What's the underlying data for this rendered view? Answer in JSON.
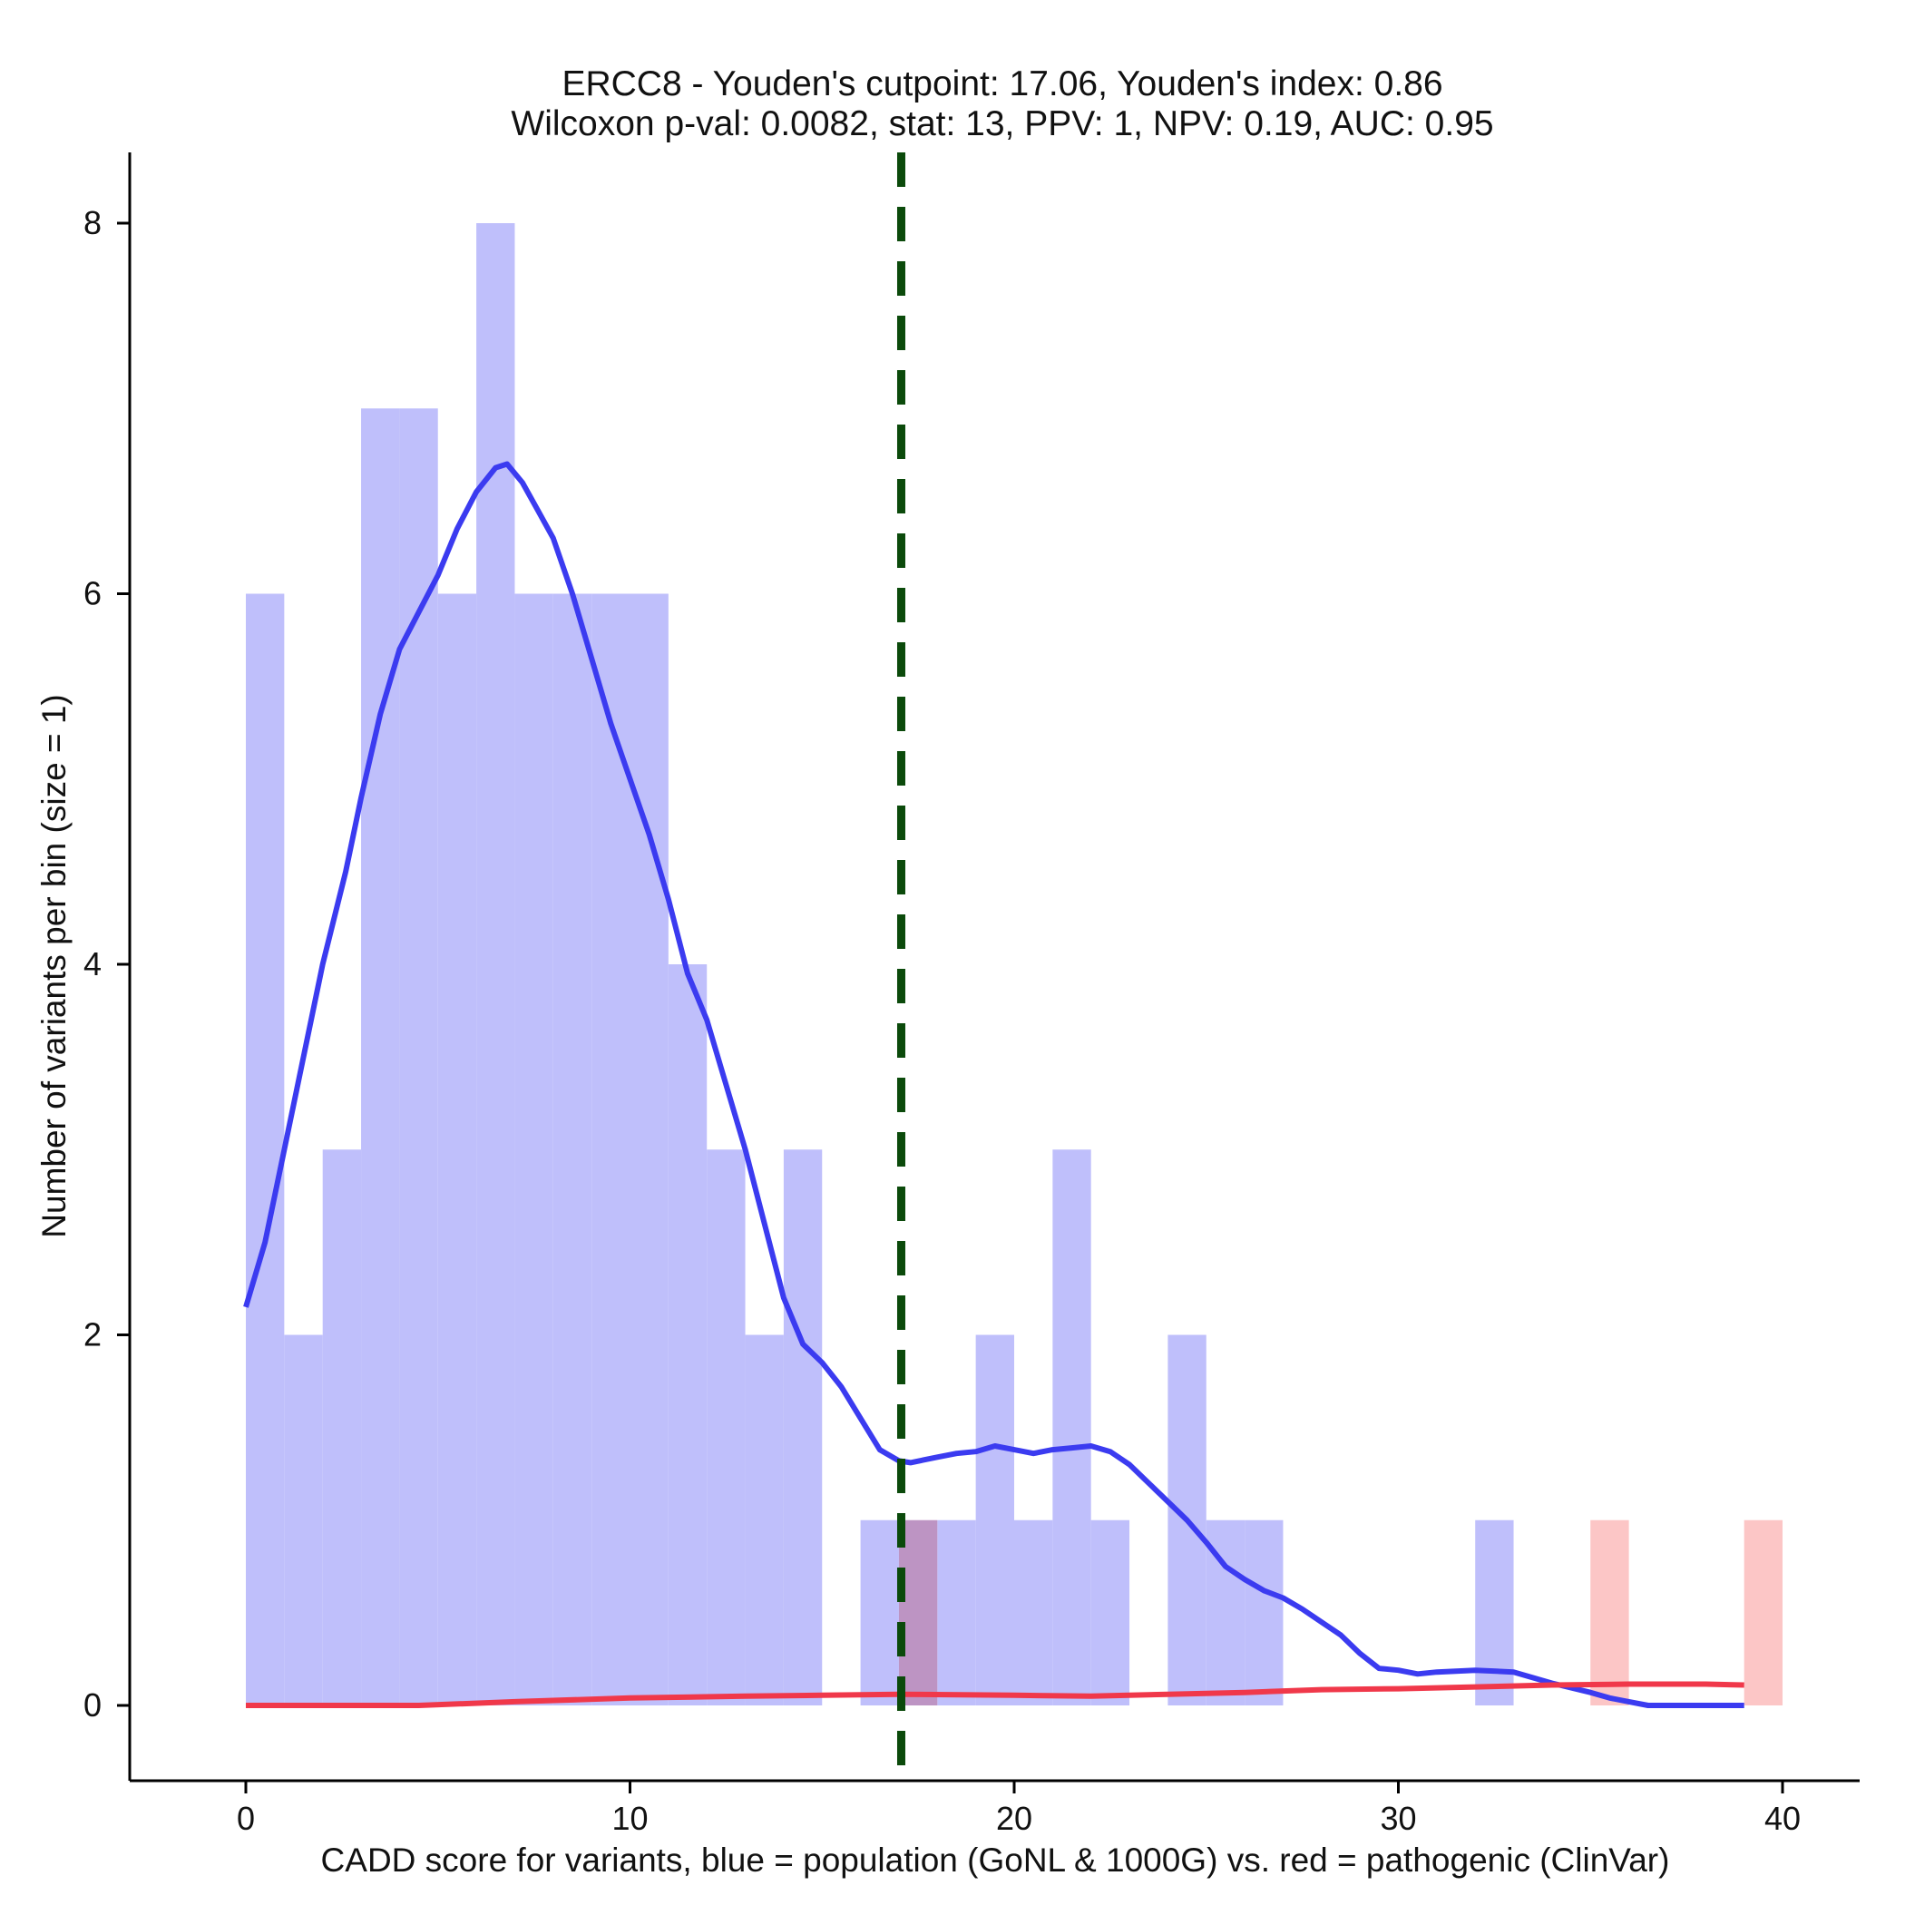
{
  "chart_data": {
    "type": "histogram-density",
    "title_line1": "ERCC8 - Youden's cutpoint: 17.06, Youden's index: 0.86",
    "title_line2": "Wilcoxon p-val: 0.0082, stat: 13, PPV: 1, NPV: 0.19, AUC: 0.95",
    "xlabel": "CADD score for variants, blue = population (GoNL & 1000G) vs. red = pathogenic (ClinVar)",
    "ylabel": "Number of variants per bin (size = 1)",
    "xlim": [
      -3,
      41
    ],
    "ylim": [
      -0.4,
      8.4
    ],
    "x_ticks": [
      0,
      10,
      20,
      30,
      40
    ],
    "x_tick_labels": [
      "0",
      "10",
      "20",
      "30",
      "40"
    ],
    "y_ticks": [
      0,
      2,
      4,
      6,
      8
    ],
    "y_tick_labels": [
      "0",
      "2",
      "4",
      "6",
      "8"
    ],
    "bin_size": 1,
    "cutpoint": 17.06,
    "colors": {
      "population_bar": "#bfbffb",
      "pathogenic_bar": "#fcbcbc",
      "population_line": "#3b3bf0",
      "pathogenic_line": "#f0384a",
      "cutpoint_line": "#0b4a0b",
      "axis": "#000000"
    },
    "series": [
      {
        "name": "population (GoNL & 1000G)",
        "bins": [
          {
            "x": 0,
            "count": 6
          },
          {
            "x": 1,
            "count": 2
          },
          {
            "x": 2,
            "count": 3
          },
          {
            "x": 3,
            "count": 7
          },
          {
            "x": 4,
            "count": 7
          },
          {
            "x": 5,
            "count": 6
          },
          {
            "x": 6,
            "count": 8
          },
          {
            "x": 7,
            "count": 6
          },
          {
            "x": 8,
            "count": 6
          },
          {
            "x": 9,
            "count": 6
          },
          {
            "x": 10,
            "count": 6
          },
          {
            "x": 11,
            "count": 4
          },
          {
            "x": 12,
            "count": 3
          },
          {
            "x": 13,
            "count": 2
          },
          {
            "x": 14,
            "count": 3
          },
          {
            "x": 16,
            "count": 1
          },
          {
            "x": 17,
            "count": 1
          },
          {
            "x": 18,
            "count": 1
          },
          {
            "x": 19,
            "count": 2
          },
          {
            "x": 20,
            "count": 1
          },
          {
            "x": 21,
            "count": 3
          },
          {
            "x": 22,
            "count": 1
          },
          {
            "x": 24,
            "count": 2
          },
          {
            "x": 25,
            "count": 1
          },
          {
            "x": 26,
            "count": 1
          },
          {
            "x": 32,
            "count": 1
          }
        ],
        "density_curve": [
          [
            0,
            2.15
          ],
          [
            0.5,
            2.5
          ],
          [
            1,
            3.0
          ],
          [
            2,
            4.0
          ],
          [
            2.6,
            4.5
          ],
          [
            3,
            4.9
          ],
          [
            3.5,
            5.35
          ],
          [
            4,
            5.7
          ],
          [
            4.5,
            5.9
          ],
          [
            5,
            6.1
          ],
          [
            5.5,
            6.35
          ],
          [
            6,
            6.55
          ],
          [
            6.5,
            6.68
          ],
          [
            6.8,
            6.7
          ],
          [
            7.2,
            6.6
          ],
          [
            7.6,
            6.45
          ],
          [
            8,
            6.3
          ],
          [
            8.5,
            6.0
          ],
          [
            9,
            5.65
          ],
          [
            9.5,
            5.3
          ],
          [
            10,
            5.0
          ],
          [
            10.5,
            4.7
          ],
          [
            11,
            4.35
          ],
          [
            11.5,
            3.95
          ],
          [
            12,
            3.7
          ],
          [
            12.5,
            3.35
          ],
          [
            13,
            3.0
          ],
          [
            13.5,
            2.6
          ],
          [
            14,
            2.2
          ],
          [
            14.5,
            1.95
          ],
          [
            15,
            1.85
          ],
          [
            15.5,
            1.72
          ],
          [
            16,
            1.55
          ],
          [
            16.5,
            1.38
          ],
          [
            17,
            1.32
          ],
          [
            17.3,
            1.31
          ],
          [
            18,
            1.34
          ],
          [
            18.5,
            1.36
          ],
          [
            19,
            1.37
          ],
          [
            19.5,
            1.4
          ],
          [
            20,
            1.38
          ],
          [
            20.5,
            1.36
          ],
          [
            21,
            1.38
          ],
          [
            21.5,
            1.39
          ],
          [
            22,
            1.4
          ],
          [
            22.5,
            1.37
          ],
          [
            23,
            1.3
          ],
          [
            23.5,
            1.2
          ],
          [
            24,
            1.1
          ],
          [
            24.5,
            1.0
          ],
          [
            25,
            0.88
          ],
          [
            25.5,
            0.75
          ],
          [
            26,
            0.68
          ],
          [
            26.5,
            0.62
          ],
          [
            27,
            0.58
          ],
          [
            27.5,
            0.52
          ],
          [
            28,
            0.45
          ],
          [
            28.5,
            0.38
          ],
          [
            29,
            0.28
          ],
          [
            29.5,
            0.2
          ],
          [
            30,
            0.19
          ],
          [
            30.5,
            0.17
          ],
          [
            31,
            0.18
          ],
          [
            32,
            0.19
          ],
          [
            33,
            0.18
          ],
          [
            33.5,
            0.15
          ],
          [
            34,
            0.12
          ],
          [
            35,
            0.07
          ],
          [
            35.5,
            0.04
          ],
          [
            36,
            0.02
          ],
          [
            36.5,
            0.0
          ],
          [
            39,
            0.0
          ]
        ]
      },
      {
        "name": "pathogenic (ClinVar)",
        "bins": [
          {
            "x": 17,
            "count": 1
          },
          {
            "x": 35,
            "count": 1
          },
          {
            "x": 39,
            "count": 1
          }
        ],
        "density_curve": [
          [
            0,
            0.0
          ],
          [
            4.5,
            0.0
          ],
          [
            7,
            0.02
          ],
          [
            10,
            0.04
          ],
          [
            13,
            0.05
          ],
          [
            15,
            0.055
          ],
          [
            17,
            0.06
          ],
          [
            20,
            0.055
          ],
          [
            22,
            0.05
          ],
          [
            24,
            0.06
          ],
          [
            26,
            0.07
          ],
          [
            28,
            0.085
          ],
          [
            30,
            0.09
          ],
          [
            32,
            0.1
          ],
          [
            34,
            0.11
          ],
          [
            36,
            0.115
          ],
          [
            38,
            0.115
          ],
          [
            39,
            0.11
          ]
        ]
      }
    ]
  }
}
